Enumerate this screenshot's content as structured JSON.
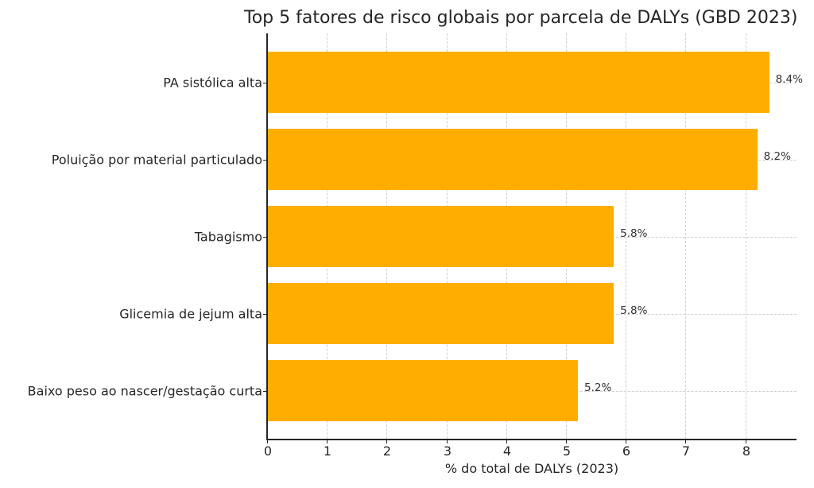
{
  "chart_data": {
    "type": "bar",
    "orientation": "horizontal",
    "title": "Top 5 fatores de risco globais por parcela de DALYs (GBD 2023)",
    "xlabel": "% do total de DALYs (2023)",
    "ylabel": "",
    "categories": [
      "PA sistólica alta",
      "Poluição por material particulado",
      "Tabagismo",
      "Glicemia de jejum alta",
      "Baixo peso ao nascer/gestação curta"
    ],
    "values": [
      8.4,
      8.2,
      5.8,
      5.8,
      5.2
    ],
    "value_labels": [
      "8.4%",
      "8.2%",
      "5.8%",
      "5.8%",
      "5.2%"
    ],
    "xlim": [
      0,
      8.85
    ],
    "xticks": [
      0,
      1,
      2,
      3,
      4,
      5,
      6,
      7,
      8
    ],
    "xtick_labels": [
      "0",
      "1",
      "2",
      "3",
      "4",
      "5",
      "6",
      "7",
      "8"
    ],
    "grid": true,
    "grid_style": "dashed",
    "bar_color": "#FFAE00",
    "legend": null
  }
}
